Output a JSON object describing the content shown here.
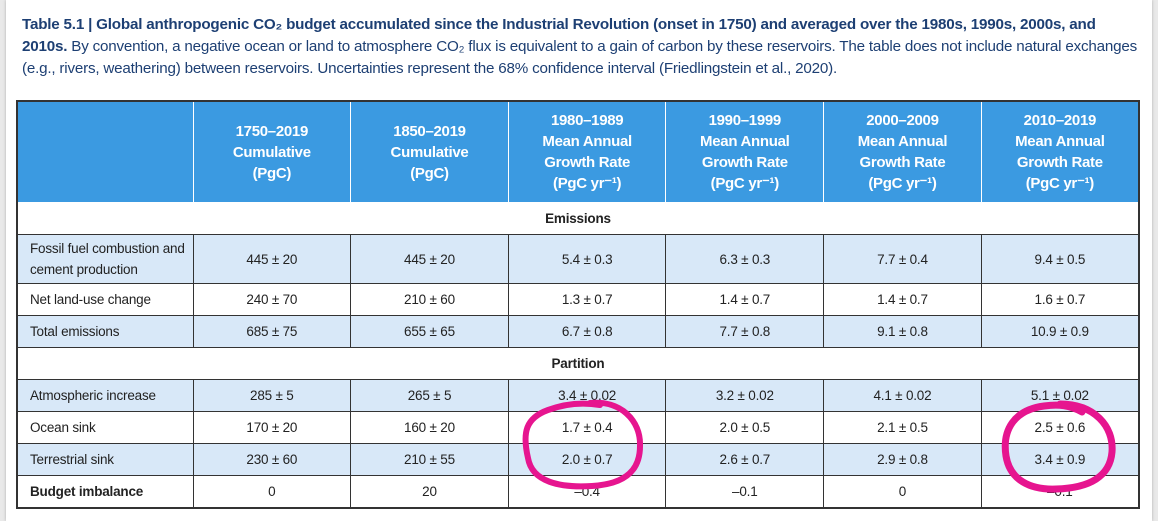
{
  "caption": {
    "title": "Table 5.1 | Global anthropogenic CO₂ budget accumulated since the Industrial Revolution (onset in 1750) and averaged over the 1980s, 1990s, 2000s, and 2010s.",
    "body": " By convention, a negative ocean or land to atmosphere CO₂ flux is equivalent to a gain of carbon by these reservoirs. The table does not include natural exchanges (e.g., rivers, weathering) between reservoirs. Uncertainties represent the 68% confidence interval (Friedlingstein et al., 2020)."
  },
  "header": [
    {
      "l1": "1750–2019",
      "l2": "Cumulative",
      "l3": "(PgC)",
      "l4": ""
    },
    {
      "l1": "1850–2019",
      "l2": "Cumulative",
      "l3": "(PgC)",
      "l4": ""
    },
    {
      "l1": "1980–1989",
      "l2": "Mean Annual",
      "l3": "Growth Rate",
      "l4": "(PgC yr⁻¹)"
    },
    {
      "l1": "1990–1999",
      "l2": "Mean Annual",
      "l3": "Growth Rate",
      "l4": "(PgC yr⁻¹)"
    },
    {
      "l1": "2000–2009",
      "l2": "Mean Annual",
      "l3": "Growth Rate",
      "l4": "(PgC yr⁻¹)"
    },
    {
      "l1": "2010–2019",
      "l2": "Mean Annual",
      "l3": "Growth Rate",
      "l4": "(PgC yr⁻¹)"
    }
  ],
  "sections": {
    "emissions": "Emissions",
    "partition": "Partition"
  },
  "rows": [
    {
      "label": "Fossil fuel combustion and cement production",
      "values": [
        "445 ± 20",
        "445 ± 20",
        "5.4 ± 0.3",
        "6.3 ± 0.3",
        "7.7 ± 0.4",
        "9.4 ± 0.5"
      ]
    },
    {
      "label": "Net land-use change",
      "values": [
        "240 ± 70",
        "210 ± 60",
        "1.3 ± 0.7",
        "1.4 ± 0.7",
        "1.4 ± 0.7",
        "1.6 ± 0.7"
      ]
    },
    {
      "label": "Total emissions",
      "values": [
        "685 ± 75",
        "655 ± 65",
        "6.7 ± 0.8",
        "7.7 ± 0.8",
        "9.1 ± 0.8",
        "10.9 ± 0.9"
      ]
    },
    {
      "label": "Atmospheric increase",
      "values": [
        "285 ± 5",
        "265 ± 5",
        "3.4 ± 0.02",
        "3.2 ± 0.02",
        "4.1 ± 0.02",
        "5.1 ± 0.02"
      ]
    },
    {
      "label": "Ocean sink",
      "values": [
        "170 ± 20",
        "160 ± 20",
        "1.7 ± 0.4",
        "2.0 ± 0.5",
        "2.1 ± 0.5",
        "2.5 ± 0.6"
      ]
    },
    {
      "label": "Terrestrial sink",
      "values": [
        "230 ± 60",
        "210 ± 55",
        "2.0 ± 0.7",
        "2.6 ± 0.7",
        "2.9 ± 0.8",
        "3.4 ± 0.9"
      ]
    },
    {
      "label": "Budget imbalance",
      "values": [
        "0",
        "20",
        "–0.4",
        "–0.1",
        "0",
        "–0.1"
      ]
    }
  ],
  "colors": {
    "header_bg": "#3b9ae1",
    "row_tint": "#d8e8f8",
    "caption_text": "#1d3f73",
    "annotation": "#e6158f"
  },
  "annotations": {
    "type": "hand-drawn circles",
    "circled_columns": [
      "1980–1989",
      "2010–2019"
    ],
    "circled_rows": [
      "Ocean sink",
      "Terrestrial sink"
    ]
  }
}
